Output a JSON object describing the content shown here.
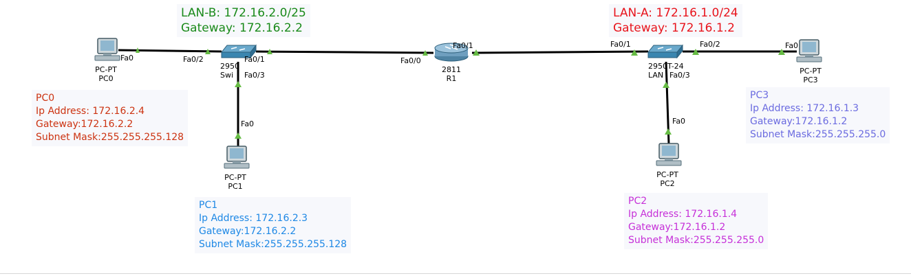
{
  "lans": {
    "lan_b": {
      "title": "LAN-B: 172.16.2.0/25",
      "gateway": "Gateway: 172.16.2.2",
      "color": "#1a8a1a"
    },
    "lan_a": {
      "title": "LAN-A: 172.16.1.0/24",
      "gateway": "Gateway: 172.16.1.2",
      "color": "#e8141c"
    }
  },
  "devices": {
    "pc0": {
      "model": "PC-PT",
      "name": "PC0"
    },
    "pc1": {
      "model": "PC-PT",
      "name": "PC1"
    },
    "pc2": {
      "model": "PC-PT",
      "name": "PC2"
    },
    "pc3": {
      "model": "PC-PT",
      "name": "PC3"
    },
    "switch_left": {
      "model": "2950-24",
      "model_visible": "2950",
      "name": "Switch0",
      "name_visible": "Swi"
    },
    "switch_right": {
      "model": "2950T-24",
      "model_visible": "2950T-24",
      "name": "LAN",
      "name_visible": "LAN"
    },
    "router": {
      "model": "2811",
      "name": "R1"
    }
  },
  "ports": {
    "pc0_fa0": "Fa0",
    "swl_fa02": "Fa0/2",
    "swl_fa01": "Fa0/1",
    "swl_fa03": "Fa0/3",
    "pc1_fa0": "Fa0",
    "r1_fa00": "Fa0/0",
    "r1_fa01": "Fa0/1",
    "swr_fa01": "Fa0/1",
    "swr_fa02": "Fa0/2",
    "swr_fa03": "Fa0/3",
    "pc3_fa0": "Fa0",
    "pc2_fa0": "Fa0"
  },
  "notes": {
    "pc0": {
      "name": "PC0",
      "ip": "Ip Address: 172.16.2.4",
      "gateway": "Gateway:172.16.2.2",
      "mask": "Subnet Mask:255.255.255.128",
      "color": "#cc3311"
    },
    "pc1": {
      "name": "PC1",
      "ip": "Ip Address: 172.16.2.3",
      "gateway": "Gateway:172.16.2.2",
      "mask": "Subnet Mask:255.255.255.128",
      "color": "#1e88e5"
    },
    "pc2": {
      "name": "PC2",
      "ip": "Ip Address: 172.16.1.4",
      "gateway": "Gateway:172.16.1.2",
      "mask": "Subnet Mask:255.255.255.0",
      "color": "#c630d8"
    },
    "pc3": {
      "name": "PC3",
      "ip": "Ip Address: 172.16.1.3",
      "gateway": "Gateway:172.16.1.2",
      "mask": "Subnet Mask:255.255.255.0",
      "color": "#6b6be0"
    }
  },
  "colors": {
    "link": "#000000",
    "link_up": "#66bb44",
    "switch": "#3a86b0",
    "router": "#5b8fb0"
  }
}
